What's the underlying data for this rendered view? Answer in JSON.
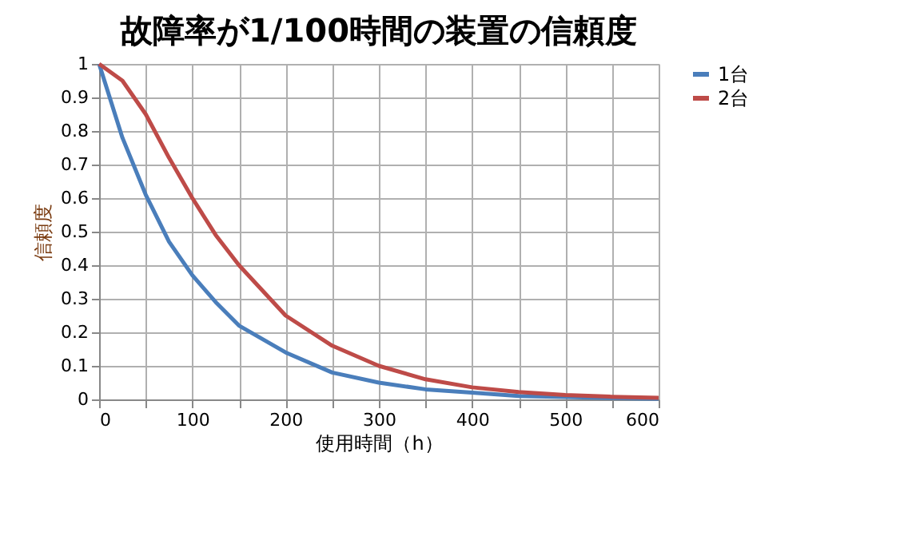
{
  "chart_data": {
    "type": "line",
    "title": "故障率が1/100時間の装置の信頼度",
    "xlabel": "使用時間（h）",
    "ylabel": "信頼度",
    "x": [
      0,
      25,
      50,
      75,
      100,
      125,
      150,
      200,
      250,
      300,
      350,
      400,
      450,
      500,
      550,
      600
    ],
    "series": [
      {
        "name": "1台",
        "color": "#4a7ebb",
        "values": [
          1,
          0.78,
          0.61,
          0.47,
          0.37,
          0.29,
          0.22,
          0.14,
          0.08,
          0.05,
          0.03,
          0.02,
          0.01,
          0.007,
          0.004,
          0.002
        ]
      },
      {
        "name": "2台",
        "color": "#be4b48",
        "values": [
          1,
          0.95,
          0.85,
          0.72,
          0.6,
          0.49,
          0.4,
          0.25,
          0.16,
          0.1,
          0.06,
          0.036,
          0.022,
          0.013,
          0.008,
          0.005
        ]
      }
    ],
    "xlim": [
      0,
      600
    ],
    "xticks": [
      0,
      {
        "value": 50,
        "label": null
      },
      100,
      {
        "value": 150,
        "label": null
      },
      200,
      {
        "value": 250,
        "label": null
      },
      300,
      {
        "value": 350,
        "label": null
      },
      400,
      {
        "value": 450,
        "label": null
      },
      500,
      {
        "value": 550,
        "label": null
      },
      600
    ],
    "ylim": [
      0,
      1
    ],
    "yticks": [
      0,
      0.1,
      0.2,
      0.3,
      0.4,
      0.5,
      0.6,
      0.7,
      0.8,
      0.9,
      1
    ],
    "grid": true,
    "legend": "right",
    "marker": "none",
    "line_style": "solid"
  }
}
